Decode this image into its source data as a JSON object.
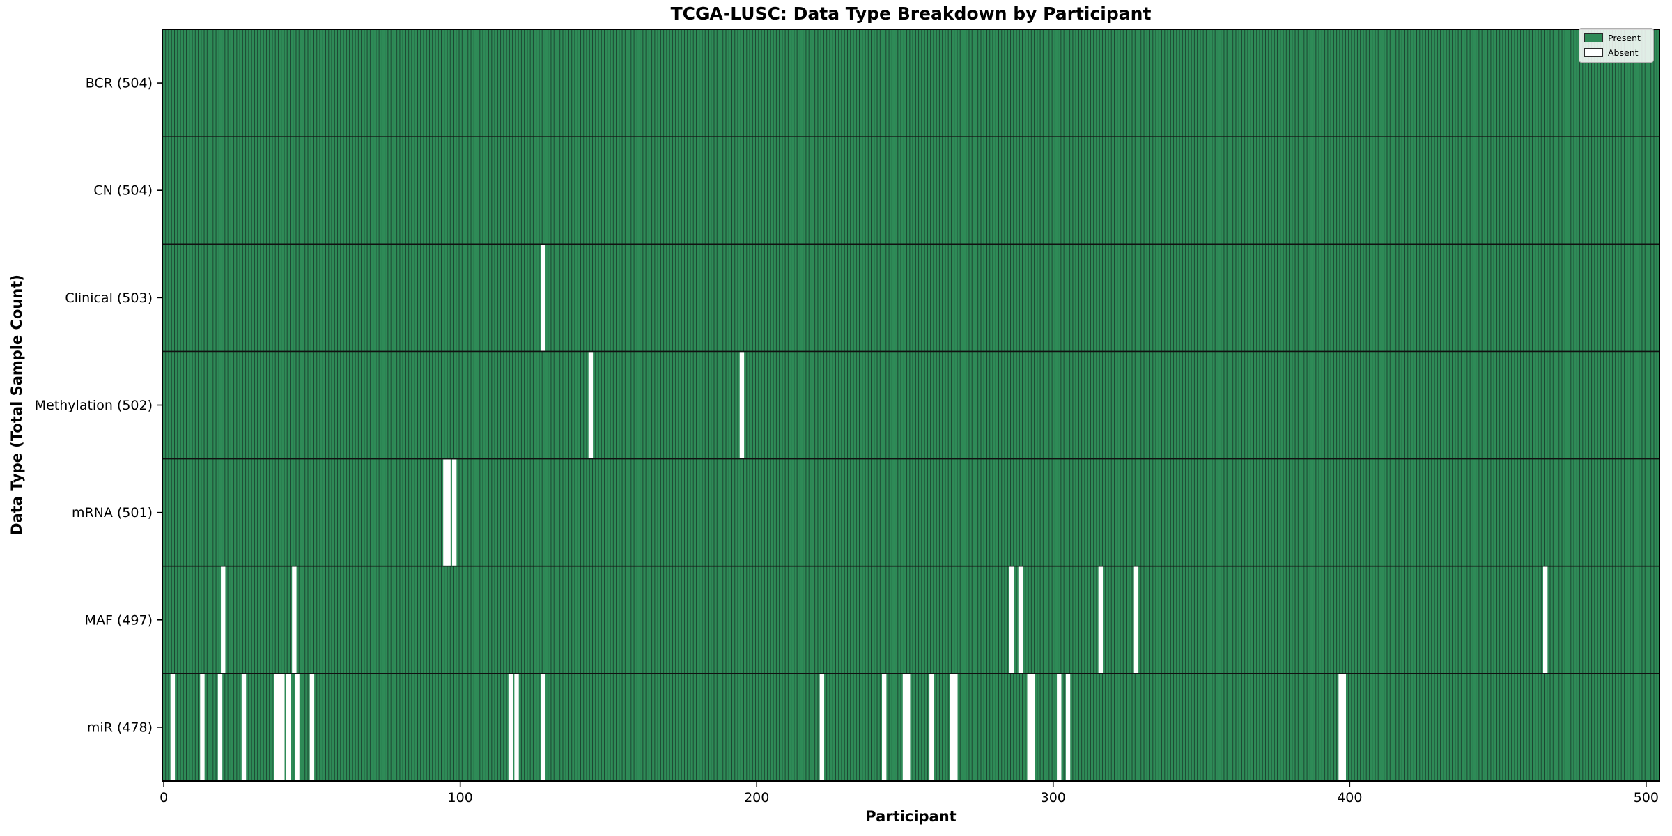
{
  "figure": {
    "title": "TCGA-LUSC: Data Type Breakdown by Participant",
    "xlabel": "Participant",
    "ylabel": "Data Type (Total Sample Count)"
  },
  "legend": {
    "items": [
      {
        "label": "Present",
        "color": "#2e8b57"
      },
      {
        "label": "Absent",
        "color": "#ffffff"
      }
    ],
    "position": "upper right"
  },
  "chart_data": {
    "type": "heatmap",
    "title": "TCGA-LUSC: Data Type Breakdown by Participant",
    "xlabel": "Participant",
    "ylabel": "Data Type (Total Sample Count)",
    "x_ticks": [
      0,
      100,
      200,
      300,
      400,
      500
    ],
    "x_range": [
      0,
      505
    ],
    "n_participants": 504,
    "grid": false,
    "legend_entries": [
      "Present",
      "Absent"
    ],
    "legend_position": "upper right",
    "colors": {
      "present": "#2e8b57",
      "absent": "#ffffff",
      "bar_edge": "#1c4531",
      "axis": "#000000",
      "separator": "#111111"
    },
    "rows": [
      {
        "label": "BCR (504)",
        "data_type": "BCR",
        "total": 504,
        "absent_participants": []
      },
      {
        "label": "CN (504)",
        "data_type": "CN",
        "total": 504,
        "absent_participants": []
      },
      {
        "label": "Clinical (503)",
        "data_type": "Clinical",
        "total": 503,
        "absent_participants": [
          128
        ]
      },
      {
        "label": "Methylation (502)",
        "data_type": "Methylation",
        "total": 502,
        "absent_participants": [
          144,
          195
        ]
      },
      {
        "label": "mRNA (501)",
        "data_type": "mRNA",
        "total": 501,
        "absent_participants": [
          95,
          96,
          98
        ]
      },
      {
        "label": "MAF (497)",
        "data_type": "MAF",
        "total": 497,
        "absent_participants": [
          20,
          44,
          286,
          289,
          316,
          328,
          466
        ]
      },
      {
        "label": "miR (478)",
        "data_type": "miR",
        "total": 478,
        "absent_participants": [
          3,
          13,
          19,
          27,
          38,
          39,
          40,
          42,
          45,
          50,
          117,
          119,
          128,
          222,
          243,
          250,
          251,
          259,
          266,
          267,
          292,
          293,
          302,
          305,
          397,
          398
        ]
      }
    ]
  }
}
